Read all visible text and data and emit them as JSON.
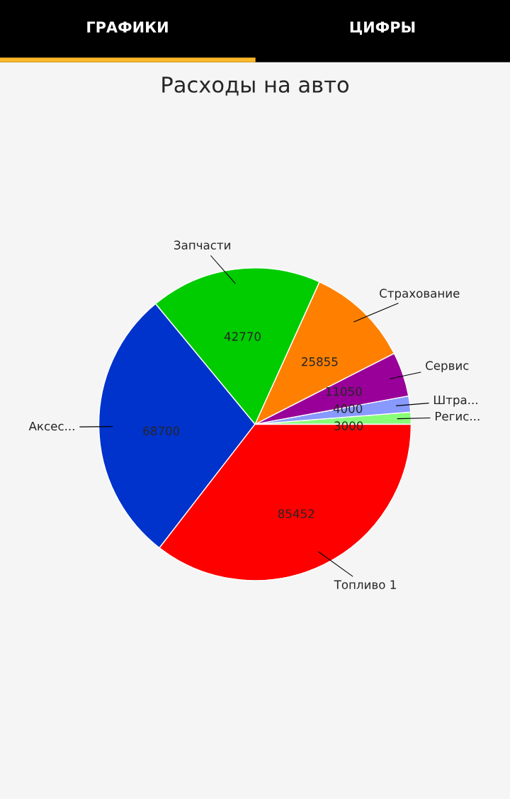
{
  "chart_data": {
    "type": "pie",
    "title": "Расходы на авто",
    "annotations": [
      "ГРАФИКИ",
      "ЦИФРЫ"
    ],
    "categories": [
      "Регис...",
      "Штра...",
      "Сервис",
      "Страхование",
      "Запчасти",
      "Аксес...",
      "Топливо 1"
    ],
    "values": [
      3000,
      4000,
      11050,
      25855,
      42770,
      68700,
      85452
    ],
    "colors": [
      "#88ff77",
      "#8899ff",
      "#990099",
      "#ff8000",
      "#00cc00",
      "#0033cc",
      "#ff0000"
    ],
    "data_labels": true
  }
}
